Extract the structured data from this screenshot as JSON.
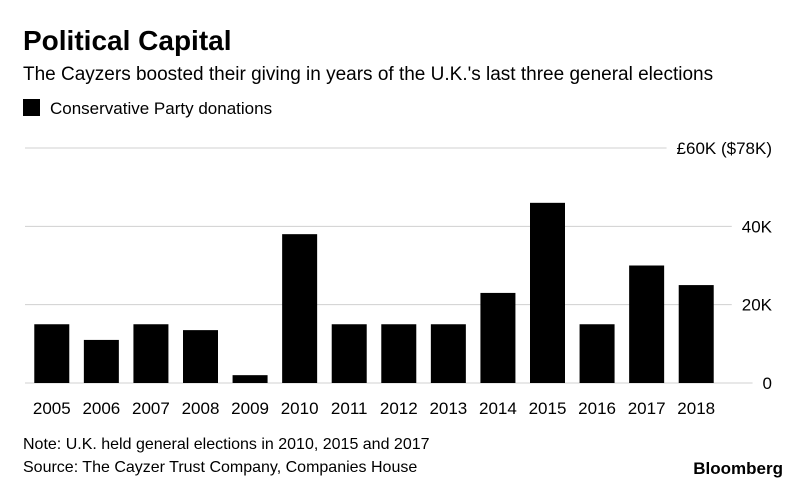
{
  "chart_data": {
    "type": "bar",
    "title": "Political Capital",
    "subtitle": "The Cayzers boosted their giving in years of the U.K.'s last three general elections",
    "categories": [
      "2005",
      "2006",
      "2007",
      "2008",
      "2009",
      "2010",
      "2011",
      "2012",
      "2013",
      "2014",
      "2015",
      "2016",
      "2017",
      "2018"
    ],
    "series": [
      {
        "name": "Conservative Party donations",
        "color": "#000000",
        "values": [
          15000,
          11000,
          15000,
          13500,
          2000,
          38000,
          15000,
          15000,
          15000,
          23000,
          46000,
          15000,
          30000,
          25000
        ]
      }
    ],
    "ylim": [
      0,
      60000
    ],
    "yticks": [
      0,
      {
        "value": 20000,
        "label": "20K"
      },
      {
        "value": 40000,
        "label": "40K"
      },
      {
        "value": 60000,
        "label": "£60K ($78K)"
      }
    ],
    "grid": true,
    "notes": [
      "Note: U.K. held general elections in 2010, 2015 and 2017",
      "Source: The Cayzer Trust Company, Companies House"
    ],
    "credit": "Bloomberg"
  }
}
